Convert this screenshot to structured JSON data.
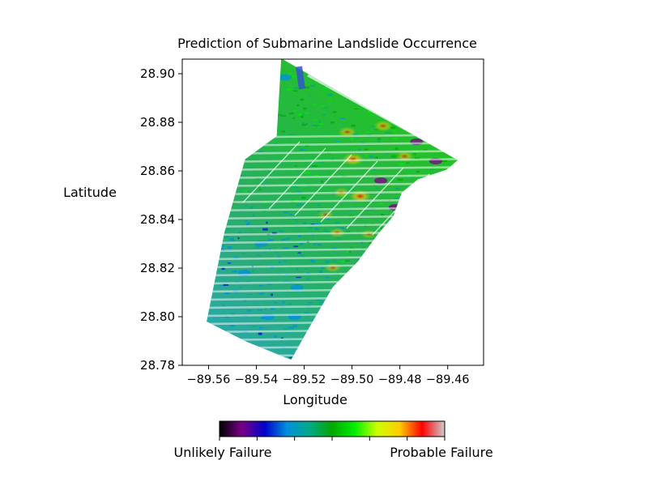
{
  "chart_data": {
    "type": "heatmap",
    "title": "Prediction of Submarine Landslide Occurrence",
    "xlabel": "Longitude",
    "ylabel": "Latitude",
    "xlim": [
      -89.571,
      -89.445
    ],
    "ylim": [
      28.78,
      28.906
    ],
    "x_ticks": [
      -89.56,
      -89.54,
      -89.52,
      -89.5,
      -89.48,
      -89.46
    ],
    "x_tick_labels": [
      "−89.56",
      "−89.54",
      "−89.52",
      "−89.50",
      "−89.48",
      "−89.46"
    ],
    "y_ticks": [
      28.78,
      28.8,
      28.82,
      28.84,
      28.86,
      28.88,
      28.9
    ],
    "y_tick_labels": [
      "28.78",
      "28.80",
      "28.82",
      "28.84",
      "28.86",
      "28.88",
      "28.90"
    ],
    "grid": false,
    "colormap": "nipy_spectral",
    "colormap_stops": [
      "#000000",
      "#7a0087",
      "#0000cc",
      "#0090dd",
      "#00aa88",
      "#00a800",
      "#00ee00",
      "#ccff00",
      "#ffcc00",
      "#ff0000",
      "#cccccc"
    ],
    "colorbar": {
      "orientation": "horizontal",
      "placement": "bottom",
      "min_label": "Unlikely Failure",
      "max_label": "Probable Failure"
    },
    "survey_outline": [
      [
        -89.5296,
        28.9063
      ],
      [
        -89.4558,
        28.8644
      ],
      [
        -89.4605,
        28.8605
      ],
      [
        -89.4725,
        28.8565
      ],
      [
        -89.4792,
        28.8511
      ],
      [
        -89.4828,
        28.8413
      ],
      [
        -89.4887,
        28.8346
      ],
      [
        -89.4977,
        28.8226
      ],
      [
        -89.508,
        28.8123
      ],
      [
        -89.5173,
        28.7966
      ],
      [
        -89.5255,
        28.7823
      ],
      [
        -89.5441,
        28.7897
      ],
      [
        -89.5608,
        28.798
      ],
      [
        -89.5534,
        28.8346
      ],
      [
        -89.5447,
        28.8648
      ],
      [
        -89.5315,
        28.8743
      ]
    ],
    "hotspots": [
      {
        "lon": -89.4996,
        "lat": 28.8648,
        "level": 0.9
      },
      {
        "lon": -89.4966,
        "lat": 28.8496,
        "level": 0.9
      },
      {
        "lon": -89.487,
        "lat": 28.8785,
        "level": 0.75
      },
      {
        "lon": -89.502,
        "lat": 28.876,
        "level": 0.7
      },
      {
        "lon": -89.5045,
        "lat": 28.8511,
        "level": 0.6
      },
      {
        "lon": -89.5062,
        "lat": 28.8346,
        "level": 0.62
      },
      {
        "lon": -89.508,
        "lat": 28.8202,
        "level": 0.6
      },
      {
        "lon": -89.511,
        "lat": 28.842,
        "level": 0.55
      },
      {
        "lon": -89.493,
        "lat": 28.834,
        "level": 0.55
      },
      {
        "lon": -89.496,
        "lat": 28.89,
        "level": 0.65
      },
      {
        "lon": -89.478,
        "lat": 28.866,
        "level": 0.7
      },
      {
        "lon": -89.473,
        "lat": 28.872,
        "level": 0.12
      },
      {
        "lon": -89.465,
        "lat": 28.864,
        "level": 0.15
      },
      {
        "lon": -89.482,
        "lat": 28.845,
        "level": 0.15
      },
      {
        "lon": -89.488,
        "lat": 28.856,
        "level": 0.18
      },
      {
        "lon": -89.528,
        "lat": 28.8985,
        "level": 0.3
      },
      {
        "lon": -89.545,
        "lat": 28.818,
        "level": 0.33
      },
      {
        "lon": -89.535,
        "lat": 28.8,
        "level": 0.3
      },
      {
        "lon": -89.523,
        "lat": 28.812,
        "level": 0.38
      },
      {
        "lon": -89.538,
        "lat": 28.83,
        "level": 0.36
      },
      {
        "lon": -89.524,
        "lat": 28.8,
        "level": 0.35
      }
    ]
  }
}
